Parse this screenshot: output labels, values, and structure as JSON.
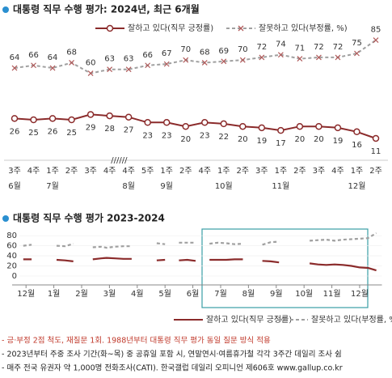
{
  "chart_data": [
    {
      "type": "line",
      "title": "대통령 직무 수행 평가: 2024년, 최근 6개월",
      "categories": [
        "3주",
        "4주",
        "1주",
        "2주",
        "3주",
        "4주",
        "4주",
        "5주",
        "1주",
        "2주",
        "4주",
        "1주",
        "2주",
        "3주",
        "1주",
        "2주",
        "3주",
        "4주",
        "1주",
        "2주"
      ],
      "month_labels": [
        "6월",
        null,
        "7월",
        null,
        null,
        null,
        "8월",
        null,
        "9월",
        null,
        null,
        "10월",
        null,
        null,
        "11월",
        null,
        null,
        null,
        "12월",
        null
      ],
      "axis_break": "//////",
      "ylim": [
        0,
        100
      ],
      "data_labels": true,
      "series": [
        {
          "name": "잘하고 있다(직무 긍정률)",
          "color": "#8b2b2b",
          "style": "solid",
          "marker": "circle",
          "values": [
            26,
            25,
            26,
            25,
            29,
            28,
            27,
            23,
            23,
            20,
            23,
            22,
            20,
            19,
            17,
            20,
            20,
            19,
            16,
            11
          ]
        },
        {
          "name": "잘못하고 있다(부정률, %)",
          "color": "#a0a0a0",
          "style": "dashed",
          "marker": "x",
          "values": [
            64,
            66,
            64,
            68,
            60,
            63,
            63,
            66,
            67,
            70,
            68,
            69,
            70,
            72,
            74,
            71,
            72,
            72,
            75,
            85
          ]
        }
      ]
    },
    {
      "type": "line",
      "title": "대통령 직무 수행 평가 2023-2024",
      "x": [
        -0.1,
        0.2,
        0.5,
        1.1,
        1.4,
        1.7,
        2.0,
        2.4,
        2.7,
        2.9,
        3.2,
        3.5,
        3.8,
        4.1,
        4.7,
        5.0,
        5.3,
        5.5,
        5.8,
        6.1,
        6.4,
        6.6,
        6.9,
        7.2,
        7.5,
        7.8,
        8.1,
        8.5,
        8.8,
        9.1,
        9.4,
        10.2,
        10.5,
        10.8,
        11.1,
        11.4,
        11.7,
        12.0,
        12.3,
        12.6
      ],
      "xlim": [
        -0.5,
        12.8
      ],
      "xticks": [
        {
          "value": 0,
          "label": "12월"
        },
        {
          "value": 1,
          "label": "1월"
        },
        {
          "value": 2,
          "label": "2월"
        },
        {
          "value": 3,
          "label": "3월"
        },
        {
          "value": 4,
          "label": "4월"
        },
        {
          "value": 5,
          "label": "5월"
        },
        {
          "value": 6,
          "label": "6월"
        },
        {
          "value": 7,
          "label": "7월"
        },
        {
          "value": 8,
          "label": "8월"
        },
        {
          "value": 9,
          "label": "9월"
        },
        {
          "value": 10,
          "label": "10월"
        },
        {
          "value": 11,
          "label": "11월"
        },
        {
          "value": 12,
          "label": "12월"
        }
      ],
      "ylim": [
        0,
        85
      ],
      "yticks": [
        0,
        20,
        40,
        60,
        80
      ],
      "series": [
        {
          "name": "잘하고 있다(직무 긍정률)",
          "color": "#8b2b2b",
          "style": "solid",
          "values": [
            33,
            33,
            null,
            32,
            31,
            29,
            null,
            33,
            35,
            36,
            35,
            34,
            34,
            null,
            31,
            32,
            null,
            31,
            32,
            30,
            null,
            32,
            32,
            32,
            33,
            33,
            null,
            30,
            29,
            27,
            null,
            25,
            23,
            22,
            23,
            22,
            20,
            17,
            16,
            11
          ]
        },
        {
          "name": "잘못하고 있다(부정률, %)",
          "color": "#a0a0a0",
          "style": "dashed",
          "values": [
            60,
            62,
            null,
            60,
            59,
            64,
            null,
            57,
            58,
            56,
            58,
            59,
            59,
            null,
            65,
            63,
            null,
            66,
            66,
            66,
            null,
            64,
            66,
            65,
            63,
            64,
            null,
            62,
            67,
            68,
            null,
            70,
            71,
            72,
            70,
            72,
            73,
            74,
            75,
            85
          ]
        }
      ]
    }
  ],
  "footnotes": [
    "- 긍·부정 2점 척도, 재질문 1회. 1988년부터 대통령 직무 평가 동일 질문 방식 적용",
    "- 2023년부터 주중 조사 기간(화~목) 중 공휴일 포함 시, 연말연시·여름휴가철 각각 3주간 데일리 조사 쉼",
    "- 매주 전국 유권자 약 1,000명 전화조사(CATI). 한국갤럽 데일리 오피니언 제606호 www.gallup.co.kr"
  ]
}
